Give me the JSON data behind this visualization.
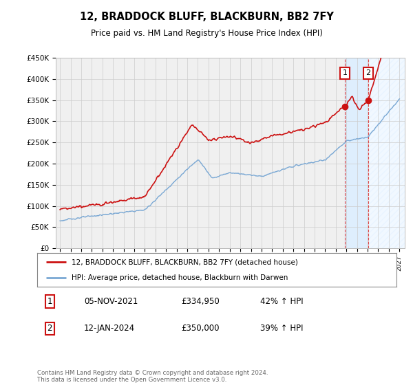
{
  "title": "12, BRADDOCK BLUFF, BLACKBURN, BB2 7FY",
  "subtitle": "Price paid vs. HM Land Registry's House Price Index (HPI)",
  "ylim": [
    0,
    450000
  ],
  "yticks": [
    0,
    50000,
    100000,
    150000,
    200000,
    250000,
    300000,
    350000,
    400000,
    450000
  ],
  "hpi_color": "#7aa8d4",
  "price_color": "#cc1111",
  "marker1_x_year": 2021.85,
  "marker1_y": 334950,
  "marker1_label": "1",
  "marker1_date": "05-NOV-2021",
  "marker1_price": "£334,950",
  "marker1_hpi": "42% ↑ HPI",
  "marker2_x_year": 2024.04,
  "marker2_y": 350000,
  "marker2_label": "2",
  "marker2_date": "12-JAN-2024",
  "marker2_price": "£350,000",
  "marker2_hpi": "39% ↑ HPI",
  "legend_label_price": "12, BRADDOCK BLUFF, BLACKBURN, BB2 7FY (detached house)",
  "legend_label_hpi": "HPI: Average price, detached house, Blackburn with Darwen",
  "footer": "Contains HM Land Registry data © Crown copyright and database right 2024.\nThis data is licensed under the Open Government Licence v3.0.",
  "bg_color": "#ffffff",
  "plot_bg_color": "#f0f0f0",
  "grid_color": "#cccccc",
  "shade_color": "#ddeeff",
  "hatch_color": "#bbccdd",
  "xlim_start": 1994.6,
  "xlim_end": 2027.5
}
